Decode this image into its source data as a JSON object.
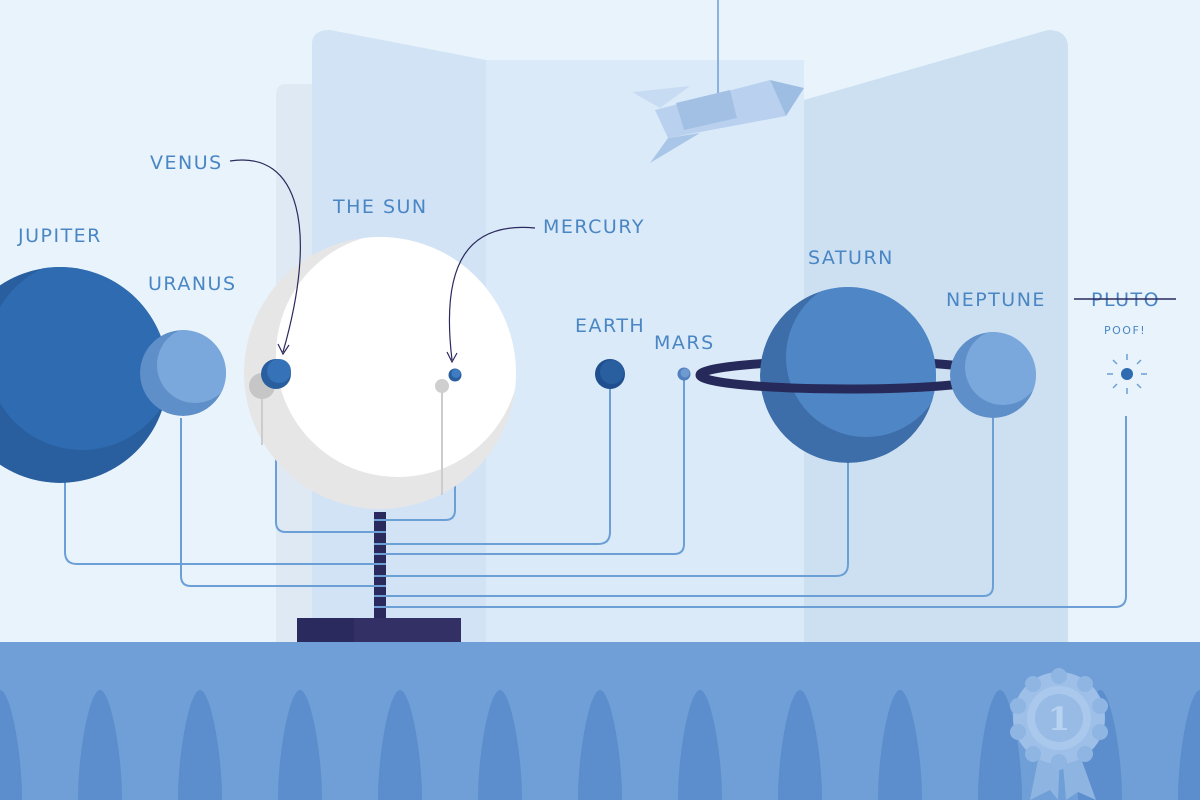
{
  "scene": {
    "labels": {
      "venus": "VENUS",
      "the_sun": "THE SUN",
      "mercury": "MERCURY",
      "jupiter": "JUPITER",
      "uranus": "URANUS",
      "earth": "EARTH",
      "mars": "MARS",
      "saturn": "SATURN",
      "neptune": "NEPTUNE",
      "pluto": "PLUTO",
      "pluto_note": "POOF!"
    },
    "ribbon_number": "1",
    "colors": {
      "background": "#e8f3fb",
      "panel": "#d3e5f6",
      "label": "#4a86c4",
      "wire": "#6b9fd6",
      "stand": "#2b2a5e",
      "table": "#6f9fd6",
      "planet_dark": "#2e6bb0",
      "sun": "#ffffff"
    }
  }
}
